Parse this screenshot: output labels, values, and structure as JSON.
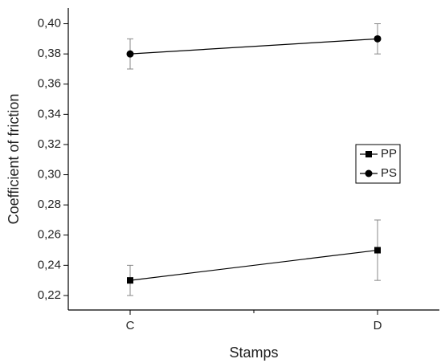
{
  "chart_data": {
    "type": "line",
    "x_label": "Stamps",
    "y_label": "Coefficient of friction",
    "categories": [
      "C",
      "D"
    ],
    "series": [
      {
        "name": "PP",
        "color": "#000000",
        "marker": "square",
        "values": [
          0.23,
          0.25
        ],
        "errors": [
          0.01,
          0.02
        ]
      },
      {
        "name": "PS",
        "color": "#000000",
        "marker": "circle",
        "values": [
          0.38,
          0.39
        ],
        "errors": [
          0.01,
          0.01
        ]
      }
    ],
    "ylim": [
      0.2104,
      0.4104
    ],
    "yticks": [
      {
        "value": 0.22,
        "label": "0,22"
      },
      {
        "value": 0.24,
        "label": "0,24"
      },
      {
        "value": 0.26,
        "label": "0,26"
      },
      {
        "value": 0.28,
        "label": "0,28"
      },
      {
        "value": 0.3,
        "label": "0,30"
      },
      {
        "value": 0.32,
        "label": "0,32"
      },
      {
        "value": 0.34,
        "label": "0,34"
      },
      {
        "value": 0.36,
        "label": "0,36"
      },
      {
        "value": 0.38,
        "label": "0,38"
      },
      {
        "value": 0.4,
        "label": "0,40"
      }
    ],
    "error_bar_color": "#888888",
    "legend": "right"
  }
}
